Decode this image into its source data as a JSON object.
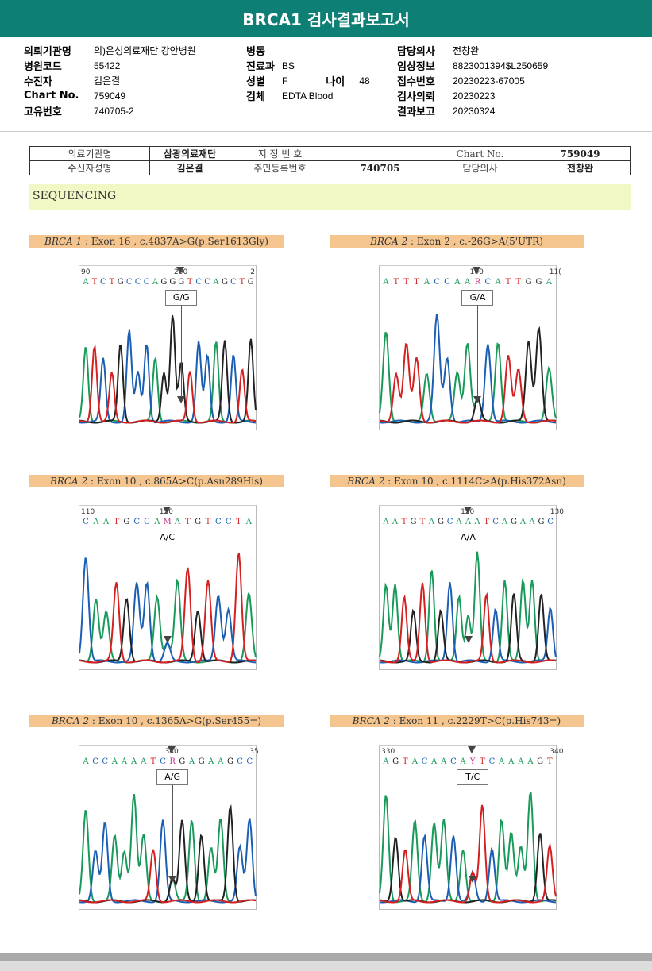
{
  "title": "BRCA1 검사결과보고서",
  "info": {
    "col1": [
      [
        "의뢰기관명",
        "의)은성의료재단 강안병원"
      ],
      [
        "병원코드",
        "55422"
      ],
      [
        "수진자",
        "김은결"
      ],
      [
        "Chart No.",
        "759049"
      ],
      [
        "고유번호",
        "740705-2"
      ]
    ],
    "col2": [
      [
        "병동",
        ""
      ],
      [
        "진료과",
        "BS"
      ],
      [
        "성별",
        "F"
      ],
      [
        "검체",
        "EDTA Blood"
      ]
    ],
    "age_label": "나이",
    "age": "48",
    "col3": [
      [
        "담당의사",
        "전창완"
      ],
      [
        "임상정보",
        "8823001394$L250659"
      ],
      [
        "접수번호",
        "20230223-67005"
      ],
      [
        "검사의뢰",
        "20230223"
      ],
      [
        "결과보고",
        "20230324"
      ]
    ]
  },
  "patient_table": {
    "r1": [
      "의료기관명",
      "삼광의료재단",
      "지 정 번 호",
      "",
      "Chart No.",
      "759049"
    ],
    "r2": [
      "수신자성명",
      "김은결",
      "주민등록번호",
      "740705",
      "담당의사",
      "전창완"
    ]
  },
  "section": "SEQUENCING",
  "colors": {
    "A": "#1a9a5a",
    "C": "#1a5fb4",
    "G": "#222222",
    "T": "#d42020",
    "R": "#c03a8a",
    "M": "#c03a8a",
    "Y": "#c03a8a"
  },
  "panels": [
    {
      "gene": "BRCA 1",
      "desc": " : Exon 16 , c.4837A>G(p.Ser1613Gly)",
      "seq": "ATCTGCCCAGGGTCCAGCTG",
      "ticks": [
        "90",
        "200",
        "2"
      ],
      "genotype": "G/G",
      "mark": 11
    },
    {
      "gene": "BRCA 2",
      "desc": " : Exon 2 , c.-26G>A(5'UTR)",
      "seq": "ATTTACCAARCATTGGA",
      "ticks": [
        "",
        "100",
        "11("
      ],
      "genotype": "G/A",
      "mark": 9
    },
    {
      "gene": "BRCA 2",
      "desc": " : Exon 10 , c.865A>C(p.Asn289His)",
      "seq": "CAATGCCAMATGTCCTA",
      "ticks": [
        "110",
        "120",
        ""
      ],
      "genotype": "A/C",
      "mark": 8
    },
    {
      "gene": "BRCA 2",
      "desc": " : Exon 10 , c.1114C>A(p.His372Asn)",
      "seq": "AATGTAGCAAATCAGAAGC",
      "ticks": [
        "",
        "120",
        "130"
      ],
      "genotype": "A/A",
      "mark": 9
    },
    {
      "gene": "BRCA 2",
      "desc": " : Exon 10 , c.1365A>G(p.Ser455=)",
      "seq": "ACCAAAATCRGAGAAGCC",
      "ticks": [
        "",
        "340",
        "35"
      ],
      "genotype": "A/G",
      "mark": 9
    },
    {
      "gene": "BRCA 2",
      "desc": " : Exon 11 , c.2229T>C(p.His743=)",
      "seq": "AGTACAACAYTCAAAAGT",
      "ticks": [
        "330",
        "",
        "340"
      ],
      "genotype": "T/C",
      "mark": 9
    }
  ]
}
